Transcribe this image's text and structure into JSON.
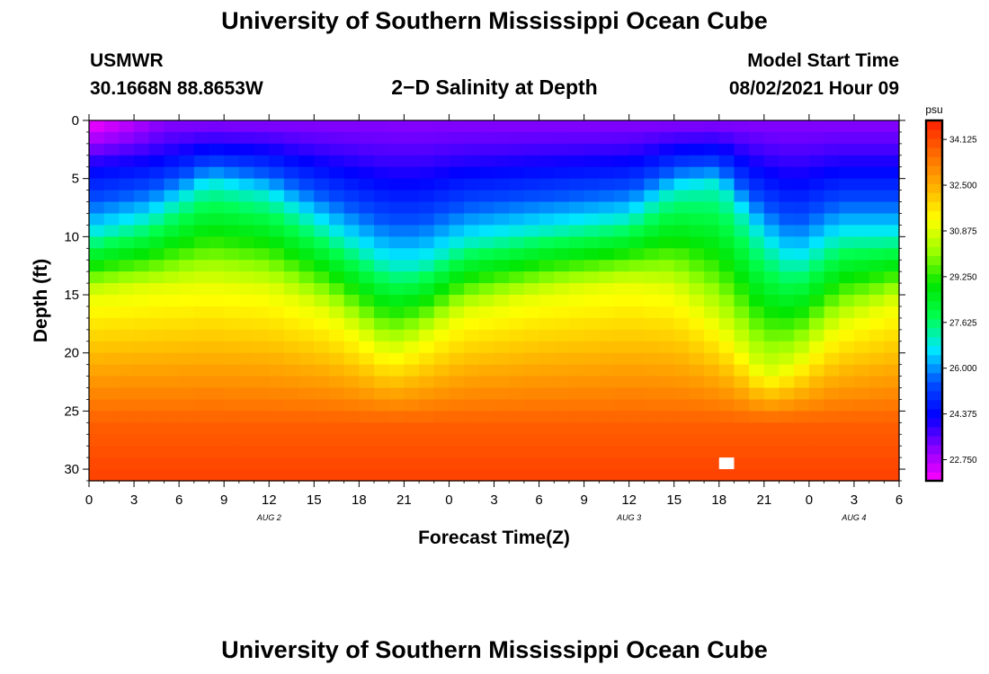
{
  "header": {
    "title_top": "University of Southern Mississippi Ocean Cube",
    "title_bottom": "University of Southern Mississippi Ocean Cube",
    "station_id": "USMWR",
    "station_coords": "30.1668N  88.8653W",
    "subtitle": "2−D Salinity at Depth",
    "model_label": "Model Start Time",
    "model_time": "08/02/2021 Hour 09"
  },
  "chart_data": {
    "type": "heatmap",
    "title": "2−D Salinity at Depth",
    "xlabel": "Forecast Time(Z)",
    "ylabel": "Depth (ft)",
    "x_hours_range": [
      0,
      54
    ],
    "ylim": [
      0,
      31
    ],
    "x_tick_labels": [
      "0",
      "3",
      "6",
      "9",
      "12",
      "15",
      "18",
      "21",
      "0",
      "3",
      "6",
      "9",
      "12",
      "15",
      "18",
      "21",
      "0",
      "3",
      "6"
    ],
    "x_tick_hours": [
      0,
      3,
      6,
      9,
      12,
      15,
      18,
      21,
      24,
      27,
      30,
      33,
      36,
      39,
      42,
      45,
      48,
      51,
      54
    ],
    "y_ticks": [
      0,
      5,
      10,
      15,
      20,
      25,
      30
    ],
    "day_labels": [
      {
        "text": "AUG  2",
        "hour": 12
      },
      {
        "text": "AUG  3",
        "hour": 36
      },
      {
        "text": "AUG  4",
        "hour": 51
      }
    ],
    "colorbar": {
      "unit": "psu",
      "range": [
        22.0,
        34.8
      ],
      "tick_values": [
        22.75,
        24.375,
        26.0,
        27.625,
        29.25,
        30.875,
        32.5,
        34.125
      ],
      "tick_labels": [
        "22.750",
        "24.375",
        "26.000",
        "27.625",
        "29.250",
        "30.875",
        "32.500",
        "34.125"
      ],
      "colors": [
        "#ff00ff",
        "#8a00ff",
        "#0000ff",
        "#0050ff",
        "#00e6ff",
        "#00ff50",
        "#00e600",
        "#9bff00",
        "#ffff00",
        "#ffb000",
        "#ff6a00",
        "#ff2000"
      ]
    },
    "isohaline_27_depth_ft": [
      {
        "hour": 0,
        "depth": 10.0
      },
      {
        "hour": 4,
        "depth": 8.5
      },
      {
        "hour": 8,
        "depth": 5.5
      },
      {
        "hour": 12,
        "depth": 6.5
      },
      {
        "hour": 16,
        "depth": 9.5
      },
      {
        "hour": 20,
        "depth": 12.5
      },
      {
        "hour": 22,
        "depth": 12.5
      },
      {
        "hour": 25,
        "depth": 10.5
      },
      {
        "hour": 30,
        "depth": 9.5
      },
      {
        "hour": 36,
        "depth": 8.5
      },
      {
        "hour": 39,
        "depth": 6.0
      },
      {
        "hour": 42,
        "depth": 5.5
      },
      {
        "hour": 45,
        "depth": 10.5
      },
      {
        "hour": 47,
        "depth": 12.5
      },
      {
        "hour": 50,
        "depth": 10.0
      },
      {
        "hour": 54,
        "depth": 10.0
      }
    ],
    "isohaline_31_depth_ft": [
      {
        "hour": 0,
        "depth": 15.0
      },
      {
        "hour": 4,
        "depth": 14.5
      },
      {
        "hour": 8,
        "depth": 14.0
      },
      {
        "hour": 12,
        "depth": 14.5
      },
      {
        "hour": 16,
        "depth": 16.5
      },
      {
        "hour": 20,
        "depth": 20.0
      },
      {
        "hour": 22,
        "depth": 19.0
      },
      {
        "hour": 25,
        "depth": 16.5
      },
      {
        "hour": 30,
        "depth": 15.0
      },
      {
        "hour": 36,
        "depth": 14.0
      },
      {
        "hour": 39,
        "depth": 14.5
      },
      {
        "hour": 42,
        "depth": 17.5
      },
      {
        "hour": 45,
        "depth": 22.0
      },
      {
        "hour": 47,
        "depth": 21.0
      },
      {
        "hour": 50,
        "depth": 17.5
      },
      {
        "hour": 54,
        "depth": 15.5
      }
    ],
    "missing_cell": {
      "hour": 42,
      "depth": 29
    }
  }
}
